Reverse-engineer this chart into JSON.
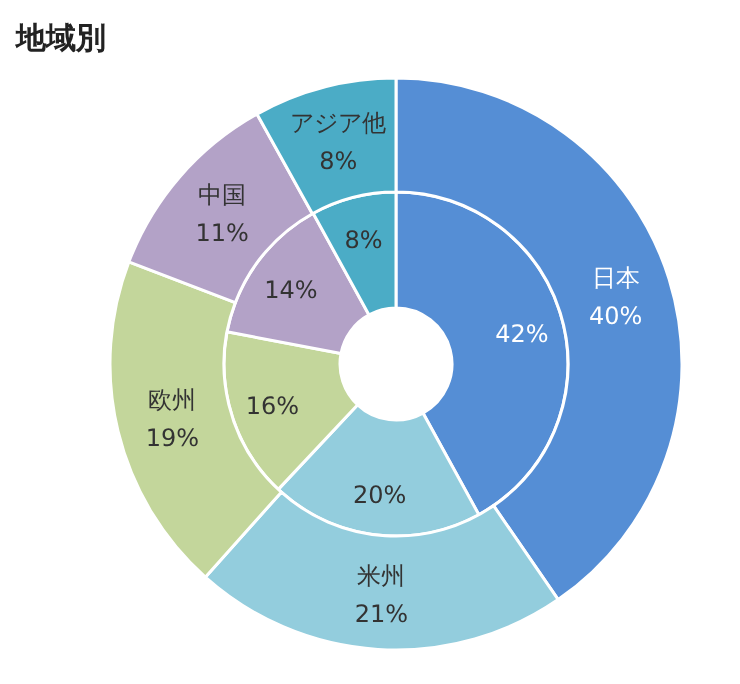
{
  "chart_data": {
    "type": "donut",
    "title": "地域別",
    "categories": [
      "日本",
      "米州",
      "欧州",
      "中国",
      "アジア他"
    ],
    "colors": [
      "#558ed5",
      "#93cddd",
      "#c3d69b",
      "#b3a2c7",
      "#4bacc6"
    ],
    "series": [
      {
        "values": [
          42,
          20,
          16,
          14,
          8
        ],
        "value_labels": [
          "42%",
          "20%",
          "16%",
          "14%",
          "8%"
        ]
      },
      {
        "values": [
          40,
          21,
          19,
          11,
          8
        ],
        "value_labels": [
          "40%",
          "21%",
          "19%",
          "11%",
          "8%"
        ]
      }
    ]
  }
}
